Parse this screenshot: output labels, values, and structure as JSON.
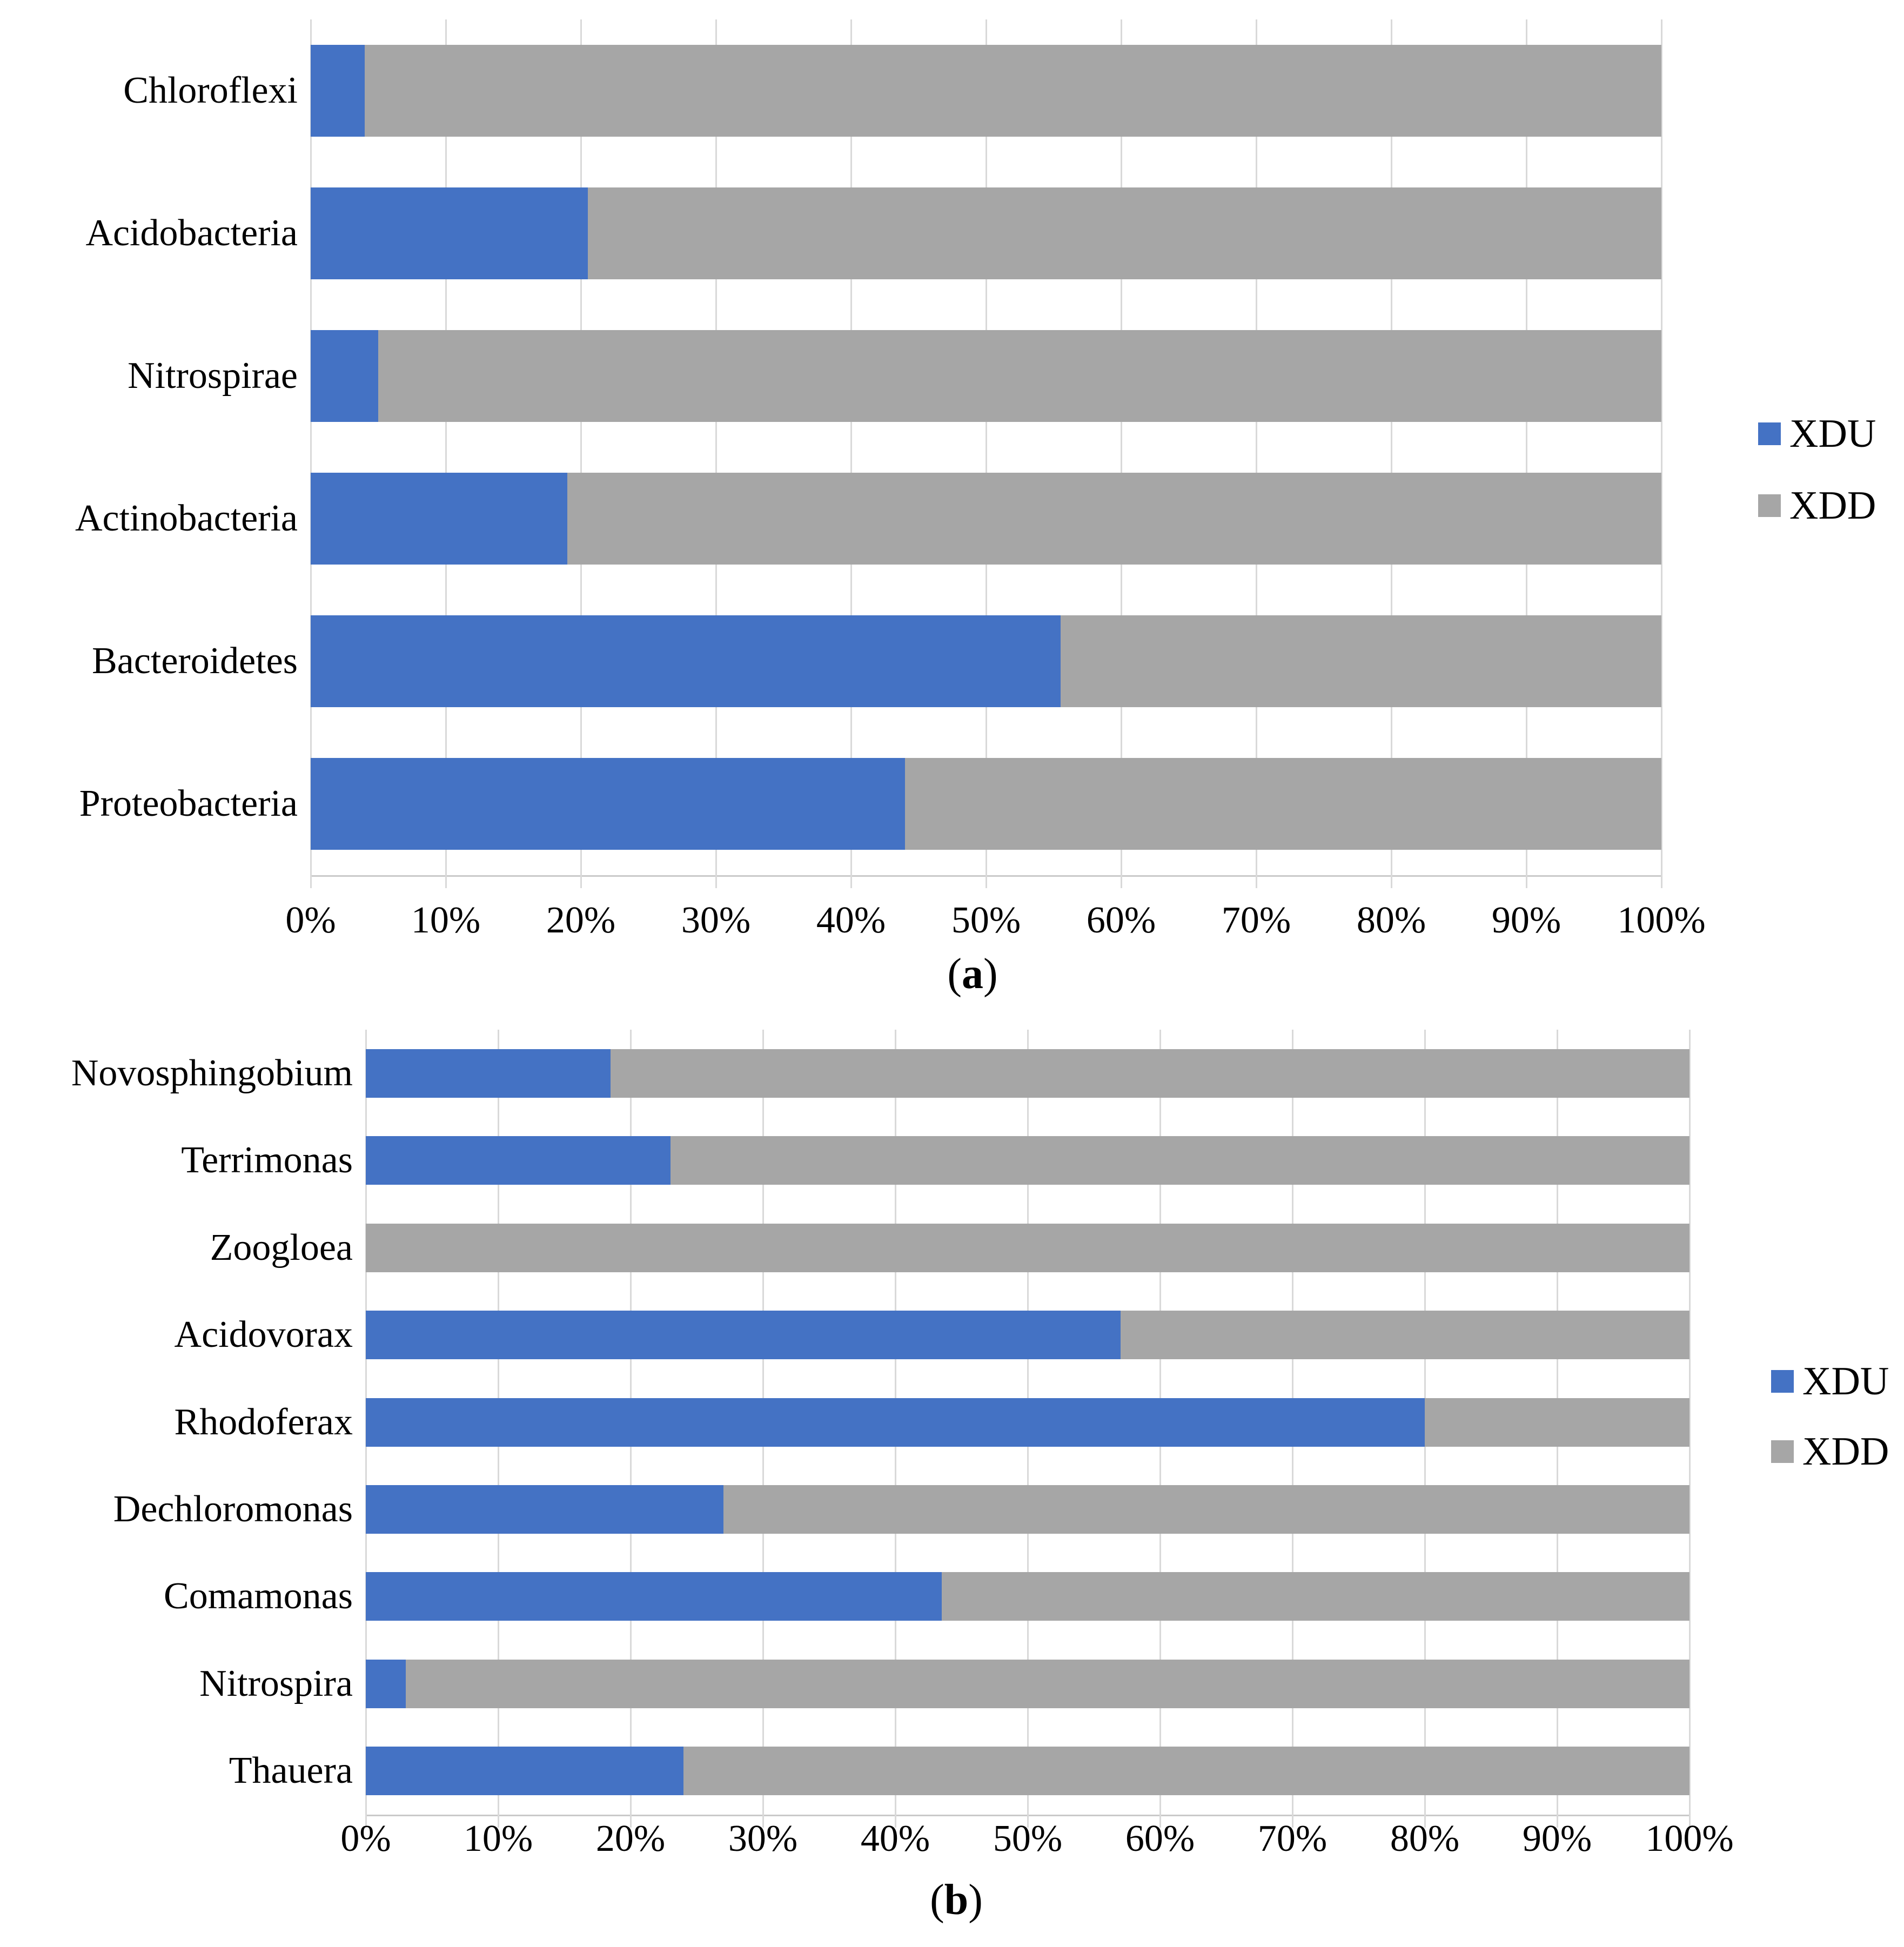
{
  "page": {
    "background": "#FFFFFF"
  },
  "colors": {
    "xdu": "#4472C4",
    "xdd": "#A6A6A6",
    "gridline": "#D9D9D9",
    "axis_line": "#C9C9C9",
    "text": "#000000"
  },
  "chart_data": [
    {
      "id": "a",
      "type": "bar",
      "orientation": "horizontal",
      "stacked": true,
      "units": "%",
      "caption_prefix": "(",
      "caption_letter": "a",
      "caption_suffix": ")",
      "categories": [
        "Chloroflexi",
        "Acidobacteria",
        "Nitrospirae",
        "Actinobacteria",
        "Bacteroidetes",
        "Proteobacteria"
      ],
      "series": [
        {
          "name": "XDU",
          "color": "#4472C4",
          "values": [
            4,
            20.5,
            5,
            19,
            55.5,
            44
          ]
        },
        {
          "name": "XDD",
          "color": "#A6A6A6",
          "values": [
            96,
            79.5,
            95,
            81,
            44.5,
            56
          ]
        }
      ],
      "x_ticks": [
        "0%",
        "10%",
        "20%",
        "30%",
        "40%",
        "50%",
        "60%",
        "70%",
        "80%",
        "90%",
        "100%"
      ],
      "xlim": [
        0,
        100
      ],
      "gridlines": "vertical",
      "legend_position": "right"
    },
    {
      "id": "b",
      "type": "bar",
      "orientation": "horizontal",
      "stacked": true,
      "units": "%",
      "caption_prefix": "(",
      "caption_letter": "b",
      "caption_suffix": ")",
      "categories": [
        "Novosphingobium",
        "Terrimonas",
        "Zoogloea",
        "Acidovorax",
        "Rhodoferax",
        "Dechloromonas",
        "Comamonas",
        "Nitrospira",
        "Thauera"
      ],
      "series": [
        {
          "name": "XDU",
          "color": "#4472C4",
          "values": [
            18.5,
            23,
            0,
            57,
            80,
            27,
            43.5,
            3,
            24
          ]
        },
        {
          "name": "XDD",
          "color": "#A6A6A6",
          "values": [
            81.5,
            77,
            100,
            43,
            20,
            73,
            56.5,
            97,
            76
          ]
        }
      ],
      "x_ticks": [
        "0%",
        "10%",
        "20%",
        "30%",
        "40%",
        "50%",
        "60%",
        "70%",
        "80%",
        "90%",
        "100%"
      ],
      "xlim": [
        0,
        100
      ],
      "gridlines": "vertical",
      "legend_position": "right"
    }
  ]
}
